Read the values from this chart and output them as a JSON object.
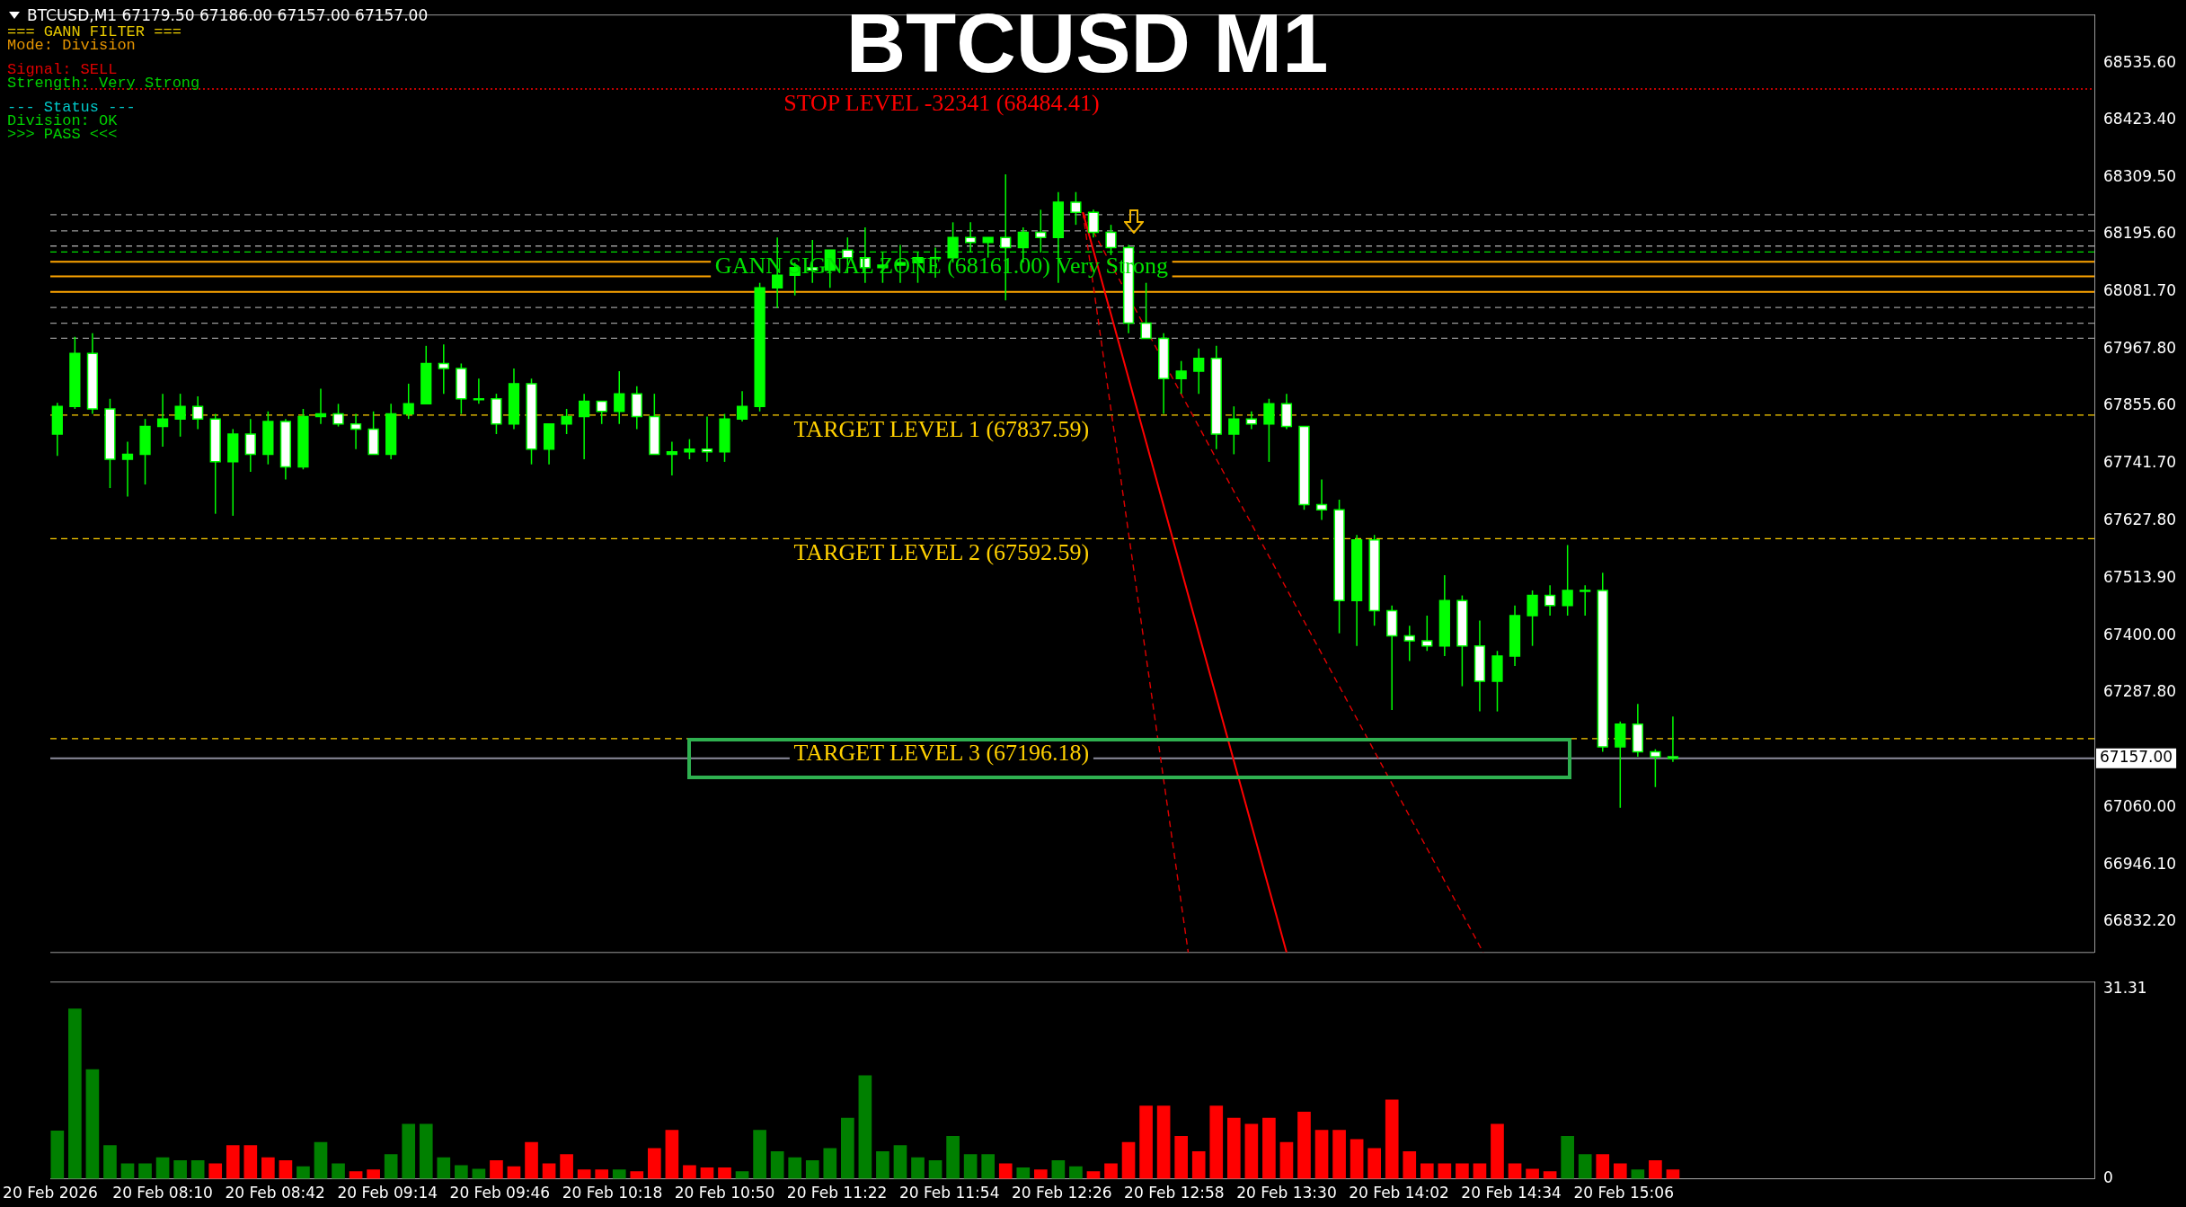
{
  "chart_data": [
    {
      "type": "candlestick",
      "title": "BTCUSD M1",
      "annotations": [
        "BTCUSD,M1  67179.50 67186.00 67157.00 67157.00",
        "=== GANN FILTER ===",
        "Mode: Division",
        "Signal: SELL",
        "Strength: Very Strong",
        "--- Status ---",
        "Division: OK",
        ">>> PASS <<<"
      ],
      "color": "#00ff00",
      "colors": [
        "#00ff00",
        "#00ff00",
        "#ffffff",
        "#ffffff",
        "#00ff00",
        "#00ff00",
        "#00ff00",
        "#00ff00",
        "#ffffff",
        "#ffffff",
        "#00ff00",
        "#ffffff",
        "#00ff00",
        "#ffffff",
        "#00ff00",
        "#00ff00",
        "#ffffff",
        "#ffffff",
        "#ffffff",
        "#00ff00",
        "#00ff00",
        "#00ff00",
        "#ffffff",
        "#ffffff",
        "#00ff00",
        "#ffffff",
        "#00ff00",
        "#ffffff",
        "#00ff00",
        "#00ff00",
        "#00ff00",
        "#ffffff",
        "#00ff00",
        "#ffffff",
        "#ffffff",
        "#00ff00",
        "#00ff00",
        "#ffffff",
        "#00ff00",
        "#00ff00",
        "#00ff00",
        "#00ff00",
        "#00ff00",
        "#ffffff",
        "#00ff00",
        "#ffffff",
        "#ffffff",
        "#00ff00",
        "#00ff00",
        "#00ff00",
        "#00ff00",
        "#00ff00",
        "#ffffff",
        "#00ff00",
        "#ffffff",
        "#00ff00",
        "#ffffff",
        "#00ff00",
        "#ffffff",
        "#ffffff",
        "#ffffff",
        "#ffffff",
        "#ffffff",
        "#ffffff",
        "#00ff00",
        "#00ff00",
        "#ffffff",
        "#00ff00",
        "#ffffff",
        "#00ff00",
        "#ffffff",
        "#ffffff",
        "#ffffff",
        "#ffffff",
        "#00ff00",
        "#ffffff",
        "#ffffff",
        "#ffffff",
        "#ffffff",
        "#00ff00",
        "#ffffff",
        "#ffffff",
        "#00ff00",
        "#00ff00",
        "#00ff00",
        "#ffffff",
        "#00ff00",
        "#00ff00",
        "#ffffff",
        "#00ff00",
        "#ffffff",
        "#ffffff",
        "#ffffff"
      ],
      "x": [
        "2026-02-20T07:40",
        "2026-02-20T07:45",
        "2026-02-20T07:50",
        "2026-02-20T07:55",
        "2026-02-20T08:00",
        "2026-02-20T08:05",
        "2026-02-20T08:10",
        "2026-02-20T08:15",
        "2026-02-20T08:20",
        "2026-02-20T08:25",
        "2026-02-20T08:30",
        "2026-02-20T08:35",
        "2026-02-20T08:40",
        "2026-02-20T08:45",
        "2026-02-20T08:50",
        "2026-02-20T08:55",
        "2026-02-20T09:00",
        "2026-02-20T09:05",
        "2026-02-20T09:10",
        "2026-02-20T09:15",
        "2026-02-20T09:20",
        "2026-02-20T09:25",
        "2026-02-20T09:30",
        "2026-02-20T09:35",
        "2026-02-20T09:40",
        "2026-02-20T09:45",
        "2026-02-20T09:50",
        "2026-02-20T09:55",
        "2026-02-20T10:00",
        "2026-02-20T10:05",
        "2026-02-20T10:10",
        "2026-02-20T10:15",
        "2026-02-20T10:20",
        "2026-02-20T10:25",
        "2026-02-20T10:30",
        "2026-02-20T10:35",
        "2026-02-20T10:40",
        "2026-02-20T10:45",
        "2026-02-20T10:50",
        "2026-02-20T10:55",
        "2026-02-20T11:00",
        "2026-02-20T11:05",
        "2026-02-20T11:10",
        "2026-02-20T11:15",
        "2026-02-20T11:20",
        "2026-02-20T11:25",
        "2026-02-20T11:30",
        "2026-02-20T11:35",
        "2026-02-20T11:40",
        "2026-02-20T11:45",
        "2026-02-20T11:50",
        "2026-02-20T11:55",
        "2026-02-20T12:00",
        "2026-02-20T12:05",
        "2026-02-20T12:10",
        "2026-02-20T12:15",
        "2026-02-20T12:20",
        "2026-02-20T12:25",
        "2026-02-20T12:30",
        "2026-02-20T12:35",
        "2026-02-20T12:40",
        "2026-02-20T12:45",
        "2026-02-20T12:50",
        "2026-02-20T12:55",
        "2026-02-20T13:00",
        "2026-02-20T13:05",
        "2026-02-20T13:10",
        "2026-02-20T13:15",
        "2026-02-20T13:20",
        "2026-02-20T13:25",
        "2026-02-20T13:30",
        "2026-02-20T13:35",
        "2026-02-20T13:40",
        "2026-02-20T13:45",
        "2026-02-20T13:50",
        "2026-02-20T13:55",
        "2026-02-20T14:00",
        "2026-02-20T14:05",
        "2026-02-20T14:10",
        "2026-02-20T14:15",
        "2026-02-20T14:20",
        "2026-02-20T14:25",
        "2026-02-20T14:30",
        "2026-02-20T14:35",
        "2026-02-20T14:40",
        "2026-02-20T14:45",
        "2026-02-20T14:50",
        "2026-02-20T14:55",
        "2026-02-20T15:00",
        "2026-02-20T15:05",
        "2026-02-20T15:10",
        "2026-02-20T15:15",
        "2026-02-20T15:20"
      ],
      "ohlc": [
        [
          67800,
          67862,
          67757,
          67855
        ],
        [
          67855,
          67993,
          67850,
          67960
        ],
        [
          67960,
          68000,
          67840,
          67850
        ],
        [
          67850,
          67870,
          67693,
          67750
        ],
        [
          67750,
          67785,
          67676,
          67760
        ],
        [
          67760,
          67830,
          67700,
          67815
        ],
        [
          67815,
          67880,
          67775,
          67830
        ],
        [
          67830,
          67880,
          67795,
          67855
        ],
        [
          67855,
          67875,
          67810,
          67830
        ],
        [
          67830,
          67840,
          67642,
          67745
        ],
        [
          67745,
          67810,
          67638,
          67800
        ],
        [
          67800,
          67830,
          67725,
          67760
        ],
        [
          67760,
          67845,
          67740,
          67825
        ],
        [
          67825,
          67830,
          67710,
          67735
        ],
        [
          67735,
          67850,
          67730,
          67835
        ],
        [
          67835,
          67890,
          67820,
          67840
        ],
        [
          67840,
          67860,
          67815,
          67820
        ],
        [
          67820,
          67840,
          67770,
          67810
        ],
        [
          67810,
          67845,
          67760,
          67760
        ],
        [
          67760,
          67860,
          67750,
          67840
        ],
        [
          67840,
          67900,
          67830,
          67860
        ],
        [
          67860,
          67975,
          67860,
          67940
        ],
        [
          67940,
          67978,
          67880,
          67930
        ],
        [
          67930,
          67940,
          67840,
          67870
        ],
        [
          67870,
          67910,
          67860,
          67870
        ],
        [
          67870,
          67880,
          67800,
          67820
        ],
        [
          67820,
          67930,
          67810,
          67900
        ],
        [
          67900,
          67910,
          67740,
          67770
        ],
        [
          67770,
          67820,
          67740,
          67820
        ],
        [
          67820,
          67850,
          67800,
          67835
        ],
        [
          67835,
          67880,
          67750,
          67865
        ],
        [
          67865,
          67865,
          67820,
          67845
        ],
        [
          67845,
          67925,
          67820,
          67880
        ],
        [
          67880,
          67895,
          67810,
          67835
        ],
        [
          67835,
          67880,
          67760,
          67760
        ],
        [
          67760,
          67785,
          67718,
          67765
        ],
        [
          67765,
          67790,
          67750,
          67770
        ],
        [
          67770,
          67835,
          67745,
          67765
        ],
        [
          67765,
          67840,
          67745,
          67830
        ],
        [
          67830,
          67885,
          67825,
          67855
        ],
        [
          67855,
          68100,
          67845,
          68090
        ],
        [
          68090,
          68190,
          68050,
          68115
        ],
        [
          68115,
          68140,
          68075,
          68130
        ],
        [
          68130,
          68185,
          68100,
          68125
        ],
        [
          68125,
          68165,
          68090,
          68165
        ],
        [
          68165,
          68190,
          68120,
          68150
        ],
        [
          68150,
          68210,
          68100,
          68130
        ],
        [
          68130,
          68160,
          68100,
          68135
        ],
        [
          68135,
          68175,
          68100,
          68140
        ],
        [
          68140,
          68160,
          68100,
          68150
        ],
        [
          68150,
          68170,
          68110,
          68150
        ],
        [
          68150,
          68220,
          68140,
          68190
        ],
        [
          68190,
          68220,
          68160,
          68180
        ],
        [
          68180,
          68190,
          68150,
          68190
        ],
        [
          68190,
          68315,
          68065,
          68170
        ],
        [
          68170,
          68210,
          68140,
          68200
        ],
        [
          68200,
          68245,
          68160,
          68190
        ],
        [
          68190,
          68280,
          68100,
          68260
        ],
        [
          68260,
          68280,
          68215,
          68240
        ],
        [
          68240,
          68245,
          68190,
          68200
        ],
        [
          68200,
          68215,
          68155,
          68170
        ],
        [
          68170,
          68175,
          68000,
          68020
        ],
        [
          68020,
          68100,
          67990,
          67990
        ],
        [
          67990,
          68000,
          67840,
          67910
        ],
        [
          67910,
          67945,
          67880,
          67925
        ],
        [
          67925,
          67970,
          67880,
          67950
        ],
        [
          67950,
          67975,
          67770,
          67800
        ],
        [
          67800,
          67855,
          67760,
          67830
        ],
        [
          67830,
          67845,
          67810,
          67820
        ],
        [
          67820,
          67870,
          67745,
          67860
        ],
        [
          67860,
          67880,
          67810,
          67815
        ],
        [
          67815,
          67815,
          67650,
          67660
        ],
        [
          67660,
          67710,
          67630,
          67650
        ],
        [
          67650,
          67670,
          67405,
          67470
        ],
        [
          67470,
          67600,
          67380,
          67590
        ],
        [
          67590,
          67600,
          67420,
          67450
        ],
        [
          67450,
          67460,
          67253,
          67400
        ],
        [
          67400,
          67420,
          67350,
          67390
        ],
        [
          67390,
          67440,
          67370,
          67380
        ],
        [
          67380,
          67520,
          67360,
          67470
        ],
        [
          67470,
          67480,
          67300,
          67380
        ],
        [
          67380,
          67430,
          67250,
          67310
        ],
        [
          67310,
          67370,
          67250,
          67360
        ],
        [
          67360,
          67460,
          67340,
          67440
        ],
        [
          67440,
          67490,
          67380,
          67480
        ],
        [
          67480,
          67500,
          67440,
          67460
        ],
        [
          67460,
          67580,
          67440,
          67490
        ],
        [
          67490,
          67500,
          67440,
          67490
        ],
        [
          67490,
          67525,
          67170,
          67180
        ],
        [
          67180,
          67230,
          67059,
          67225
        ],
        [
          67225,
          67265,
          67160,
          67170
        ],
        [
          67170,
          67175,
          67100,
          67160
        ],
        [
          67160,
          67240,
          67150,
          67157
        ]
      ],
      "series": [
        {
          "type": "line",
          "color": "#ff0000",
          "line_style": "solid",
          "x": [
            "2026-02-20T12:32",
            "2026-02-20T13:30"
          ],
          "values": [
            68240,
            66772
          ]
        },
        {
          "type": "line",
          "color": "#e00000",
          "line_style": "dashed",
          "x": [
            "2026-02-20T12:32",
            "2026-02-20T13:02"
          ],
          "values": [
            68240,
            66772
          ]
        },
        {
          "type": "line",
          "color": "#e00000",
          "line_style": "dashed",
          "x": [
            "2026-02-20T12:32",
            "2026-02-20T14:26"
          ],
          "values": [
            68240,
            66772
          ]
        }
      ],
      "xlim": [
        "2026-02-20T07:38",
        "2026-02-20T17:20"
      ],
      "ylim": [
        66772,
        68632
      ],
      "yticks": [
        {
          "value": 68535.6,
          "label": "68535.60"
        },
        {
          "value": 68423.4,
          "label": "68423.40"
        },
        {
          "value": 68309.5,
          "label": "68309.50"
        },
        {
          "value": 68195.6,
          "label": "68195.60"
        },
        {
          "value": 68081.7,
          "label": "68081.70"
        },
        {
          "value": 67967.8,
          "label": "67967.80"
        },
        {
          "value": 67855.6,
          "label": "67855.60"
        },
        {
          "value": 67741.7,
          "label": "67741.70"
        },
        {
          "value": 67627.8,
          "label": "67627.80"
        },
        {
          "value": 67513.9,
          "label": "67513.90"
        },
        {
          "value": 67400,
          "label": "67400.00"
        },
        {
          "value": 67287.8,
          "label": "67287.80"
        },
        {
          "value": 67060,
          "label": "67060.00"
        },
        {
          "value": 66946.1,
          "label": "66946.10"
        },
        {
          "value": 66832.2,
          "label": "66832.20"
        }
      ],
      "ref_lines": [
        {
          "axis": "y",
          "value": 68484.41,
          "label": "STOP LEVEL -32341 (68484.41)",
          "color": "#ff0000",
          "line_style": "dotted"
        },
        {
          "axis": "y",
          "value": 68235,
          "color": "#9a9a9a",
          "line_style": "dashed"
        },
        {
          "axis": "y",
          "value": 68203,
          "color": "#9a9a9a",
          "line_style": "dashed"
        },
        {
          "axis": "y",
          "value": 68173,
          "color": "#9a9a9a",
          "line_style": "dashed"
        },
        {
          "axis": "y",
          "value": 68161,
          "label": "GANN SIGNAL ZONE (68161.00) Very Strong",
          "color": "#00e000",
          "line_style": "dashed"
        },
        {
          "axis": "y",
          "value": 68142,
          "color": "#ffa500",
          "line_style": "solid"
        },
        {
          "axis": "y",
          "value": 68113,
          "color": "#ffa500",
          "line_style": "solid"
        },
        {
          "axis": "y",
          "value": 68082,
          "color": "#ffa500",
          "line_style": "solid"
        },
        {
          "axis": "y",
          "value": 68051,
          "color": "#9a9a9a",
          "line_style": "dashed"
        },
        {
          "axis": "y",
          "value": 68020,
          "color": "#9a9a9a",
          "line_style": "dashed"
        },
        {
          "axis": "y",
          "value": 67990,
          "color": "#9a9a9a",
          "line_style": "dashed"
        },
        {
          "axis": "y",
          "value": 67837.59,
          "label": "TARGET LEVEL 1 (67837.59)",
          "color": "#ffd000",
          "line_style": "dashed"
        },
        {
          "axis": "y",
          "value": 67592.59,
          "label": "TARGET LEVEL 2 (67592.59)",
          "color": "#ffd000",
          "line_style": "dashed"
        },
        {
          "axis": "y",
          "value": 67196.18,
          "label": "TARGET LEVEL 3 (67196.18)",
          "color": "#ffd000",
          "line_style": "dashed"
        },
        {
          "axis": "y",
          "value": 67157,
          "label": "67157.00",
          "color": "#8c8c9c",
          "line_style": "solid"
        }
      ],
      "tick_labels": "y"
    },
    {
      "type": "bar",
      "x": [
        "2026-02-20T07:40",
        "2026-02-20T07:45",
        "2026-02-20T07:50",
        "2026-02-20T07:55",
        "2026-02-20T08:00",
        "2026-02-20T08:05",
        "2026-02-20T08:10",
        "2026-02-20T08:15",
        "2026-02-20T08:20",
        "2026-02-20T08:25",
        "2026-02-20T08:30",
        "2026-02-20T08:35",
        "2026-02-20T08:40",
        "2026-02-20T08:45",
        "2026-02-20T08:50",
        "2026-02-20T08:55",
        "2026-02-20T09:00",
        "2026-02-20T09:05",
        "2026-02-20T09:10",
        "2026-02-20T09:15",
        "2026-02-20T09:20",
        "2026-02-20T09:25",
        "2026-02-20T09:30",
        "2026-02-20T09:35",
        "2026-02-20T09:40",
        "2026-02-20T09:45",
        "2026-02-20T09:50",
        "2026-02-20T09:55",
        "2026-02-20T10:00",
        "2026-02-20T10:05",
        "2026-02-20T10:10",
        "2026-02-20T10:15",
        "2026-02-20T10:20",
        "2026-02-20T10:25",
        "2026-02-20T10:30",
        "2026-02-20T10:35",
        "2026-02-20T10:40",
        "2026-02-20T10:45",
        "2026-02-20T10:50",
        "2026-02-20T10:55",
        "2026-02-20T11:00",
        "2026-02-20T11:05",
        "2026-02-20T11:10",
        "2026-02-20T11:15",
        "2026-02-20T11:20",
        "2026-02-20T11:25",
        "2026-02-20T11:30",
        "2026-02-20T11:35",
        "2026-02-20T11:40",
        "2026-02-20T11:45",
        "2026-02-20T11:50",
        "2026-02-20T11:55",
        "2026-02-20T12:00",
        "2026-02-20T12:05",
        "2026-02-20T12:10",
        "2026-02-20T12:15",
        "2026-02-20T12:20",
        "2026-02-20T12:25",
        "2026-02-20T12:30",
        "2026-02-20T12:35",
        "2026-02-20T12:40",
        "2026-02-20T12:45",
        "2026-02-20T12:50",
        "2026-02-20T12:55",
        "2026-02-20T13:00",
        "2026-02-20T13:05",
        "2026-02-20T13:10",
        "2026-02-20T13:15",
        "2026-02-20T13:20",
        "2026-02-20T13:25",
        "2026-02-20T13:30",
        "2026-02-20T13:35",
        "2026-02-20T13:40",
        "2026-02-20T13:45",
        "2026-02-20T13:50",
        "2026-02-20T13:55",
        "2026-02-20T14:00",
        "2026-02-20T14:05",
        "2026-02-20T14:10",
        "2026-02-20T14:15",
        "2026-02-20T14:20",
        "2026-02-20T14:25",
        "2026-02-20T14:30",
        "2026-02-20T14:35",
        "2026-02-20T14:40",
        "2026-02-20T14:45",
        "2026-02-20T14:50",
        "2026-02-20T14:55",
        "2026-02-20T15:00",
        "2026-02-20T15:05",
        "2026-02-20T15:10",
        "2026-02-20T15:15",
        "2026-02-20T15:20"
      ],
      "values": [
        7.9,
        28,
        18,
        5.5,
        2.5,
        2.5,
        3.5,
        3,
        3,
        2.5,
        5.5,
        5.5,
        3.5,
        3,
        2,
        6,
        2.5,
        1.2,
        1.5,
        4,
        9,
        9,
        3.5,
        2.2,
        1.6,
        3,
        2,
        6,
        2.5,
        4,
        1.5,
        1.5,
        1.5,
        1.2,
        5,
        8,
        2.2,
        1.8,
        1.8,
        1.2,
        8,
        4.5,
        3.5,
        3,
        5,
        10,
        17,
        4.5,
        5.5,
        3.5,
        3,
        7,
        4,
        4,
        2.5,
        1.8,
        1.5,
        3,
        2,
        1.2,
        2.5,
        6,
        12,
        12,
        7,
        4.5,
        12,
        10,
        9,
        10,
        6,
        11,
        8,
        8,
        6.5,
        5,
        13,
        4.5,
        2.5,
        2.5,
        2.5,
        2.5,
        9,
        2.5,
        1.6,
        1.2,
        7,
        4,
        4,
        2.5,
        1.5,
        3,
        1.5
      ],
      "colors": [
        "#008000",
        "#008000",
        "#008000",
        "#008000",
        "#008000",
        "#008000",
        "#008000",
        "#008000",
        "#008000",
        "#ff0000",
        "#ff0000",
        "#ff0000",
        "#ff0000",
        "#ff0000",
        "#008000",
        "#008000",
        "#008000",
        "#ff0000",
        "#ff0000",
        "#008000",
        "#008000",
        "#008000",
        "#008000",
        "#008000",
        "#008000",
        "#ff0000",
        "#ff0000",
        "#ff0000",
        "#ff0000",
        "#ff0000",
        "#ff0000",
        "#ff0000",
        "#008000",
        "#ff0000",
        "#ff0000",
        "#ff0000",
        "#ff0000",
        "#ff0000",
        "#ff0000",
        "#008000",
        "#008000",
        "#008000",
        "#008000",
        "#008000",
        "#008000",
        "#008000",
        "#008000",
        "#008000",
        "#008000",
        "#008000",
        "#008000",
        "#008000",
        "#008000",
        "#008000",
        "#ff0000",
        "#008000",
        "#ff0000",
        "#008000",
        "#008000",
        "#ff0000",
        "#ff0000",
        "#ff0000",
        "#ff0000",
        "#ff0000",
        "#ff0000",
        "#ff0000",
        "#ff0000",
        "#ff0000",
        "#ff0000",
        "#ff0000",
        "#ff0000",
        "#ff0000",
        "#ff0000",
        "#ff0000",
        "#ff0000",
        "#ff0000",
        "#ff0000",
        "#ff0000",
        "#ff0000",
        "#ff0000",
        "#ff0000",
        "#ff0000",
        "#ff0000",
        "#ff0000",
        "#ff0000",
        "#ff0000",
        "#008000",
        "#008000",
        "#ff0000",
        "#ff0000",
        "#008000",
        "#ff0000",
        "#ff0000"
      ],
      "xlim": [
        "2026-02-20T07:38",
        "2026-02-20T17:20"
      ],
      "xticks": [
        {
          "value": "2026-02-20T07:38",
          "label": "20 Feb 2026"
        },
        {
          "value": "2026-02-20T08:10",
          "label": "20 Feb 08:10"
        },
        {
          "value": "2026-02-20T08:42",
          "label": "20 Feb 08:42"
        },
        {
          "value": "2026-02-20T09:14",
          "label": "20 Feb 09:14"
        },
        {
          "value": "2026-02-20T09:46",
          "label": "20 Feb 09:46"
        },
        {
          "value": "2026-02-20T10:18",
          "label": "20 Feb 10:18"
        },
        {
          "value": "2026-02-20T10:50",
          "label": "20 Feb 10:50"
        },
        {
          "value": "2026-02-20T11:22",
          "label": "20 Feb 11:22"
        },
        {
          "value": "2026-02-20T11:54",
          "label": "20 Feb 11:54"
        },
        {
          "value": "2026-02-20T12:26",
          "label": "20 Feb 12:26"
        },
        {
          "value": "2026-02-20T12:58",
          "label": "20 Feb 12:58"
        },
        {
          "value": "2026-02-20T13:30",
          "label": "20 Feb 13:30"
        },
        {
          "value": "2026-02-20T14:02",
          "label": "20 Feb 14:02"
        },
        {
          "value": "2026-02-20T14:34",
          "label": "20 Feb 14:34"
        },
        {
          "value": "2026-02-20T15:06",
          "label": "20 Feb 15:06"
        }
      ],
      "ylim": [
        0,
        32.5
      ],
      "yticks": [
        0,
        31.31
      ]
    }
  ]
}
